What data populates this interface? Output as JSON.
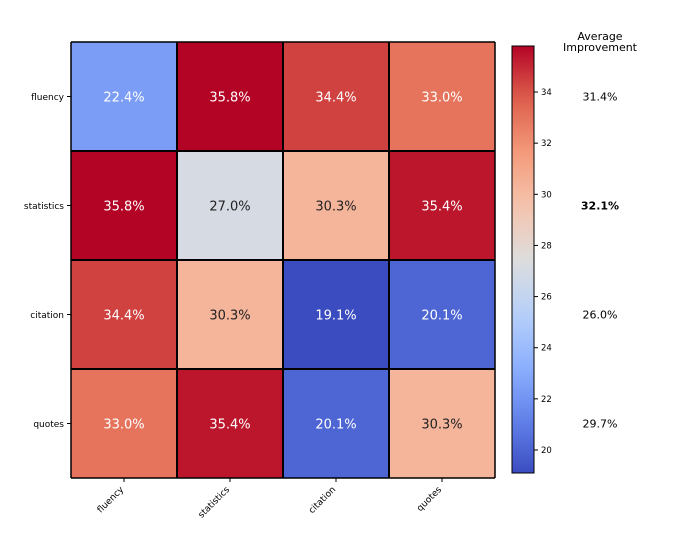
{
  "chart_data": {
    "type": "heatmap",
    "title": "",
    "xlabel": "",
    "ylabel": "",
    "row_labels": [
      "fluency",
      "statistics",
      "citation",
      "quotes"
    ],
    "col_labels": [
      "fluency",
      "statistics",
      "citation",
      "quotes"
    ],
    "values": [
      [
        22.4,
        35.8,
        34.4,
        33.0
      ],
      [
        35.8,
        27.0,
        30.3,
        35.4
      ],
      [
        34.4,
        30.3,
        19.1,
        20.1
      ],
      [
        33.0,
        35.4,
        20.1,
        30.3
      ]
    ],
    "cell_labels": [
      [
        "22.4%",
        "35.8%",
        "34.4%",
        "33.0%"
      ],
      [
        "35.8%",
        "27.0%",
        "30.3%",
        "35.4%"
      ],
      [
        "34.4%",
        "30.3%",
        "19.1%",
        "20.1%"
      ],
      [
        "33.0%",
        "35.4%",
        "20.1%",
        "30.3%"
      ]
    ],
    "colormap": "coolwarm",
    "vmin": 19.1,
    "vmax": 35.8,
    "colorbar_ticks": [
      20,
      22,
      24,
      26,
      28,
      30,
      32,
      34
    ],
    "average_improvement": {
      "title_line1": "Average",
      "title_line2": "Improvement",
      "values": [
        31.4,
        32.1,
        26.0,
        29.7
      ],
      "labels": [
        "31.4%",
        "32.1%",
        "26.0%",
        "29.7%"
      ],
      "highlight_index": 1
    }
  }
}
